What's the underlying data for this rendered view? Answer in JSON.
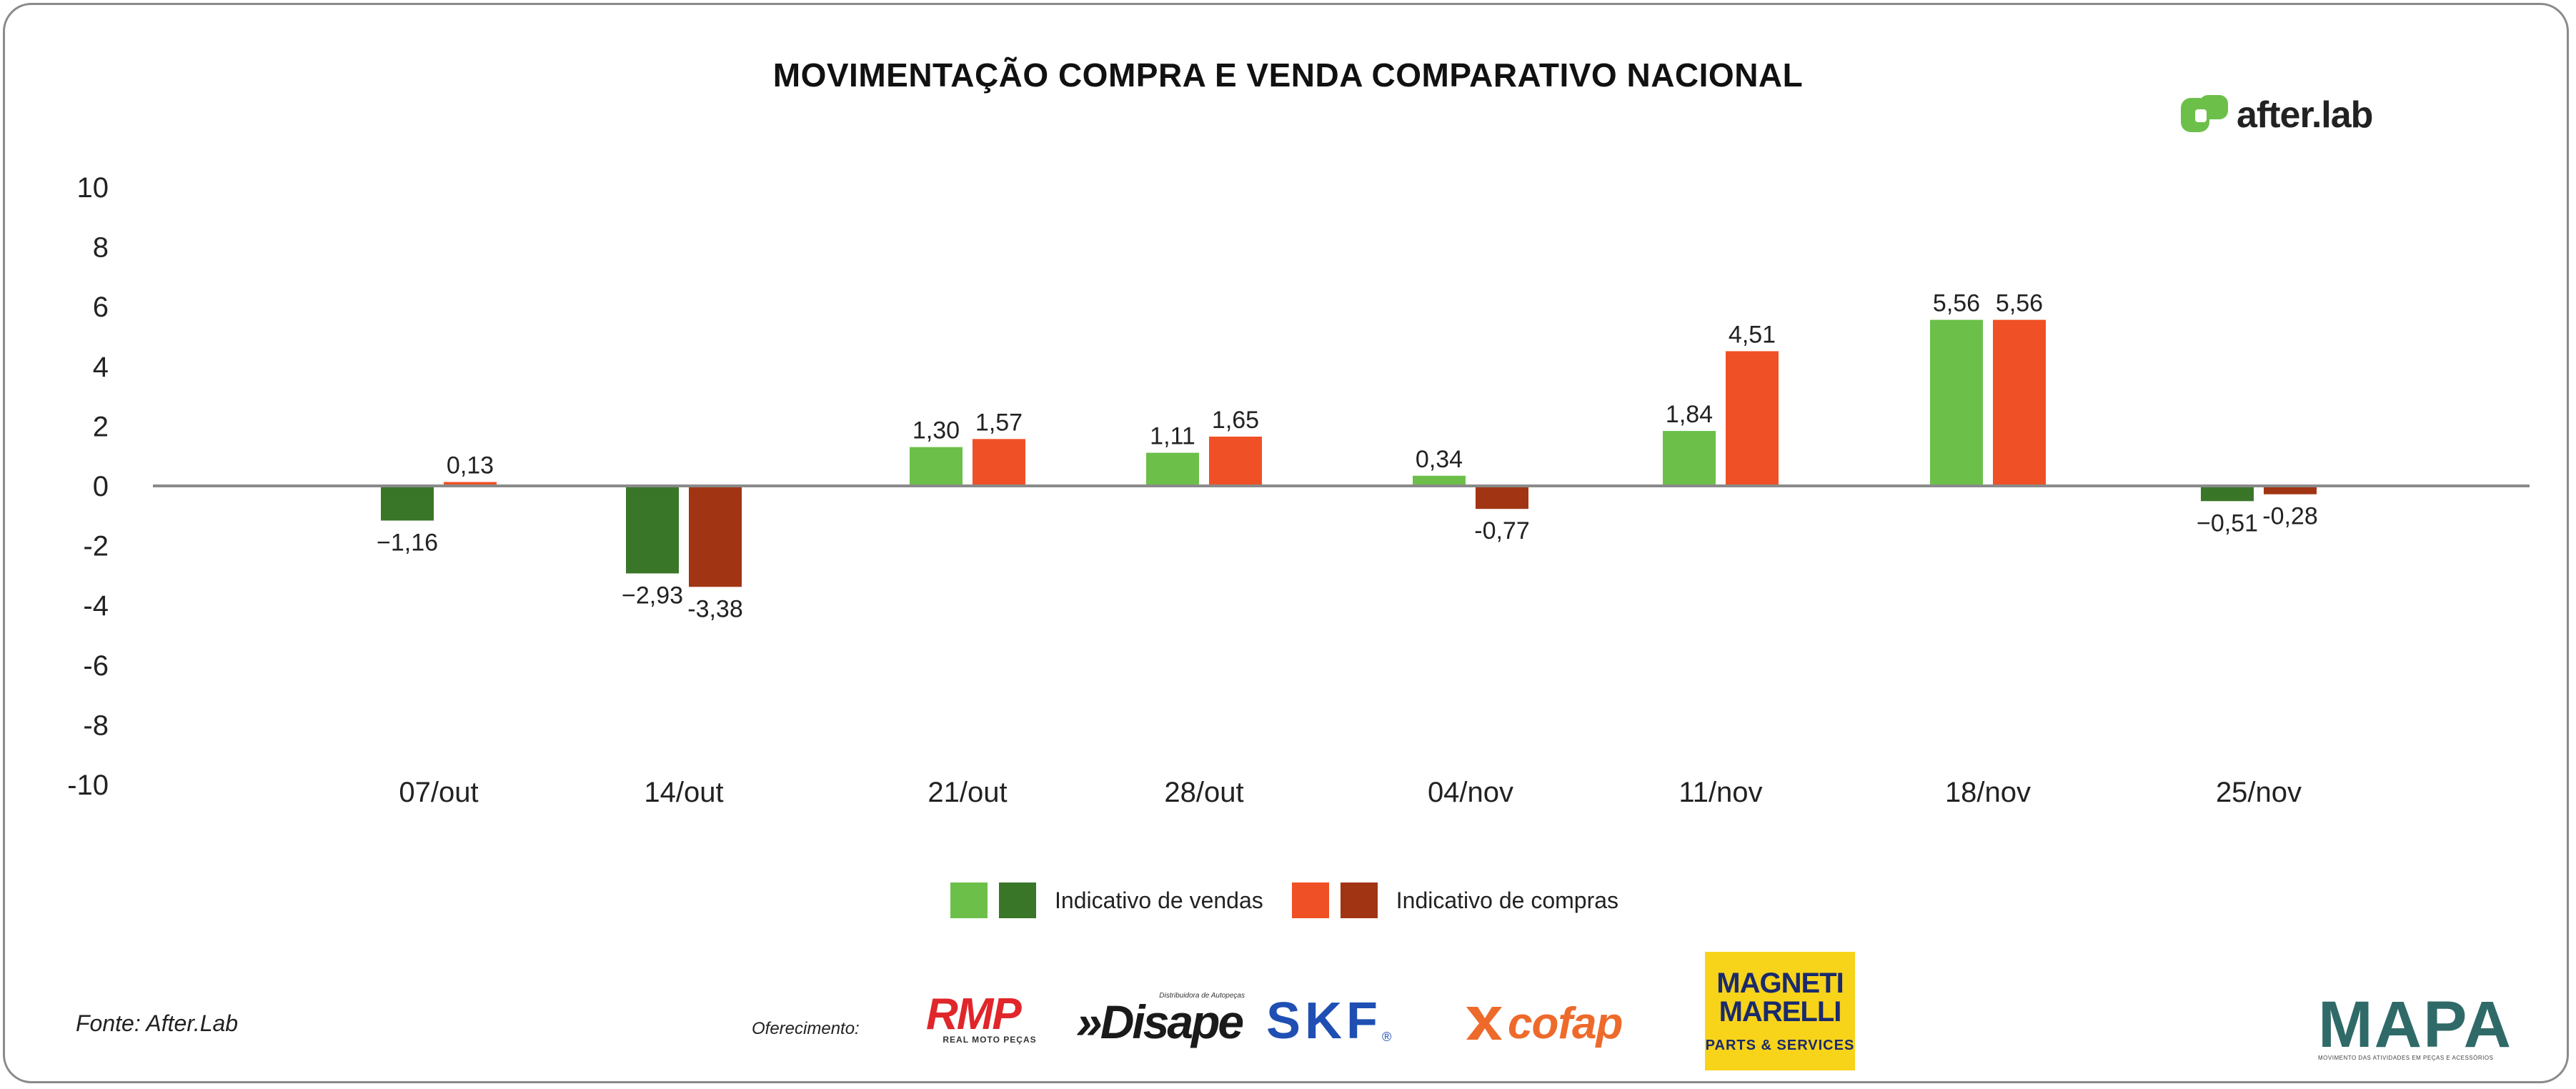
{
  "title": "MOVIMENTAÇÃO COMPRA E VENDA COMPARATIVO NACIONAL",
  "brand": {
    "name": "after.lab",
    "icon": "afterlab-logo-icon",
    "color": "#6cc04a"
  },
  "chart_data": {
    "type": "bar",
    "title": "MOVIMENTAÇÃO COMPRA E VENDA COMPARATIVO NACIONAL",
    "xlabel": "",
    "ylabel": "",
    "ylim": [
      -10,
      10
    ],
    "yticks": [
      "10",
      "8",
      "6",
      "4",
      "2",
      "0",
      "-2",
      "-4",
      "-6",
      "-8",
      "-10"
    ],
    "ytick_values": [
      10,
      8,
      6,
      4,
      2,
      0,
      -2,
      -4,
      -6,
      -8,
      -10
    ],
    "categories": [
      "07/out",
      "14/out",
      "21/out",
      "28/out",
      "04/nov",
      "11/nov",
      "18/nov",
      "25/nov"
    ],
    "series": [
      {
        "name": "Indicativo de vendas",
        "values": [
          -1.16,
          -2.93,
          1.3,
          1.11,
          0.34,
          1.84,
          5.56,
          -0.51
        ],
        "labels": [
          "−1,16",
          "−2,93",
          "1,30",
          "1,11",
          "0,34",
          "1,84",
          "5,56",
          "−0,51"
        ],
        "color_positive": "#6cc04a",
        "color_negative": "#3a7628"
      },
      {
        "name": "Indicativo de compras",
        "values": [
          0.13,
          -3.38,
          1.57,
          1.65,
          -0.77,
          4.51,
          5.56,
          -0.28
        ],
        "labels": [
          "0,13",
          "-3,38",
          "1,57",
          "1,65",
          "-0,77",
          "4,51",
          "5,56",
          "-0,28"
        ],
        "color_positive": "#f05025",
        "color_negative": "#a13513"
      }
    ],
    "legend_position": "bottom-center",
    "grid": false
  },
  "legend": {
    "vendas_label": "Indicativo de vendas",
    "compras_label": "Indicativo de compras",
    "colors": {
      "vendas_light": "#6cc04a",
      "vendas_dark": "#3a7628",
      "compras_light": "#f05025",
      "compras_dark": "#a13513"
    }
  },
  "footer": {
    "source": "Fonte: After.Lab",
    "sponsor_label": "Oferecimento:",
    "sponsors": {
      "rmp": {
        "name": "RMP",
        "sub": "REAL MOTO PEÇAS"
      },
      "disape": {
        "name": "»Disape",
        "sub": "Distribuidora de Autopeças"
      },
      "skf": {
        "name": "SKF"
      },
      "cofap": {
        "name": "cofap"
      },
      "magneti": {
        "line1": "MAGNETI",
        "line2": "MARELLI",
        "line3": "PARTS & SERVICES"
      },
      "mapa": {
        "name": "MAPA",
        "sub": "MOVIMENTO DAS ATIVIDADES EM PEÇAS E ACESSÓRIOS"
      }
    }
  }
}
